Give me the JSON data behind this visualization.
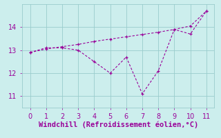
{
  "x": [
    0,
    1,
    2,
    3,
    4,
    5,
    6,
    7,
    8,
    9,
    10,
    11
  ],
  "line1_y": [
    12.9,
    13.05,
    13.15,
    13.25,
    13.38,
    13.48,
    13.58,
    13.68,
    13.78,
    13.9,
    14.05,
    14.7
  ],
  "line2_y": [
    12.9,
    13.1,
    13.1,
    13.0,
    12.5,
    12.0,
    12.7,
    11.1,
    12.1,
    13.9,
    13.7,
    14.7
  ],
  "line_color": "#990099",
  "background_color": "#cceeed",
  "grid_color": "#99cccc",
  "xlabel": "Windchill (Refroidissement éolien,°C)",
  "xlabel_color": "#990099",
  "xlabel_fontsize": 7.5,
  "xlim": [
    -0.5,
    11.5
  ],
  "ylim": [
    10.5,
    15.0
  ],
  "yticks": [
    11,
    12,
    13,
    14
  ],
  "xticks": [
    0,
    1,
    2,
    3,
    4,
    5,
    6,
    7,
    8,
    9,
    10,
    11
  ],
  "tick_fontsize": 7,
  "tick_color": "#990099"
}
